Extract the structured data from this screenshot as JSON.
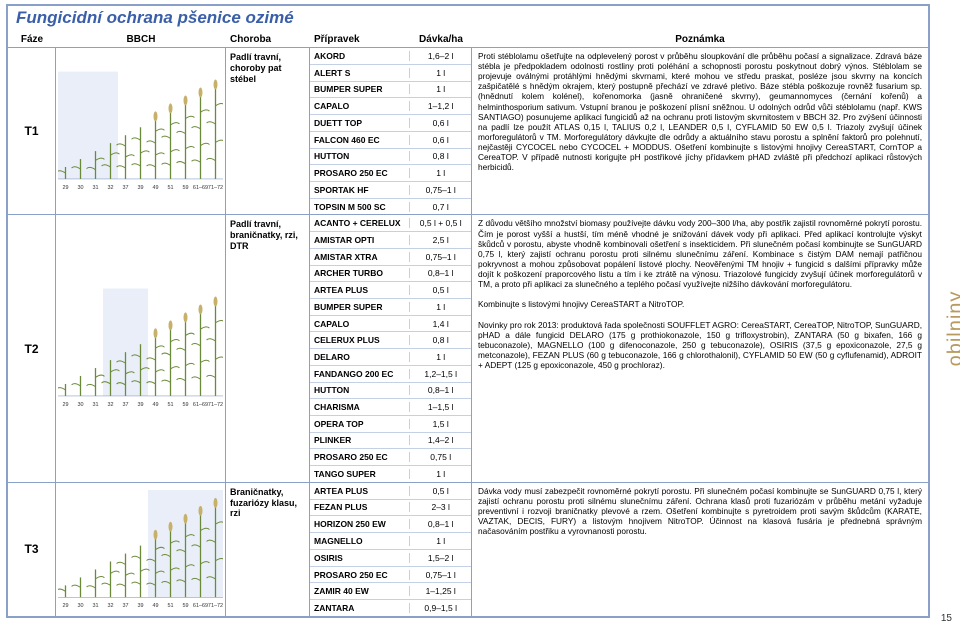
{
  "page": {
    "title": "Fungicidní ochrana pšenice ozimé",
    "side_label": "obilniny",
    "page_number": "15"
  },
  "header": {
    "faze": "Fáze",
    "bbch": "BBCH",
    "choroba": "Choroba",
    "pripravek": "Přípravek",
    "davka": "Dávka/ha",
    "poznamka": "Poznámka"
  },
  "bbch_ticks": [
    "29",
    "30",
    "31",
    "32",
    "37",
    "39",
    "49",
    "51",
    "59",
    "61–69",
    "71–72"
  ],
  "rows": [
    {
      "faze": "T1",
      "choroba": "Padlí travní, choroby pat stébel",
      "hl_start": 0,
      "hl_end": 4,
      "products": [
        {
          "name": "AKORD",
          "dose": "1,6–2 l"
        },
        {
          "name": "ALERT S",
          "dose": "1 l"
        },
        {
          "name": "BUMPER SUPER",
          "dose": "1 l"
        },
        {
          "name": "CAPALO",
          "dose": "1–1,2 l"
        },
        {
          "name": "DUETT TOP",
          "dose": "0,6 l"
        },
        {
          "name": "FALCON 460 EC",
          "dose": "0,6 l"
        },
        {
          "name": "HUTTON",
          "dose": "0,8 l"
        },
        {
          "name": "PROSARO 250 EC",
          "dose": "1 l"
        },
        {
          "name": "SPORTAK HF",
          "dose": "0,75–1 l"
        },
        {
          "name": "TOPSIN M 500 SC",
          "dose": "0,7 l"
        }
      ],
      "note": "Proti stéblolamu ošetřujte na odplevelený porost v průběhu sloupkování dle průběhu počasí a signalizace. Zdravá báze stébla je předpokladem odolnosti rostliny proti poléhání a schopnosti porostu poskytnout dobrý výnos. Stéblolam se projevuje oválnými protáhlými hnědými skvrnami, které mohou ve středu praskat, posléze jsou skvrny na koncích zašpičatělé s hnědým okrajem, který postupně přechází ve zdravé pletivo. Báze stébla poškozuje rovněž fusarium sp. (hnědnutí kolem kolénel), kořenomorka (jasně ohraničené skvrny), geumannomyces (černání kořenů) a helminthosporium sativum. Vstupní branou je poškození plísní sněžnou. U odolných odrůd vůči stéblolamu (např. KWS SANTIAGO) posunujeme aplikaci fungicidů až na ochranu proti listovým skvrnitostem v BBCH 32. Pro zvýšení účinnosti na padlí lze použít ATLAS 0,15 l, TALIUS 0,2 l, LEANDER 0,5 l, CYFLAMID 50 EW 0,5 l. Triazoly zvyšují účinek morforegulátorů v TM. Morforegulátory dávkujte dle odrůdy a aktuálního stavu porostu a splnění faktorů pro polehnutí, nejčastěji CYCOCEL nebo CYCOCEL + MODDUS. Ošetření kombinujte s listovými hnojivy CereaSTART, CornTOP a CereaTOP. V případě nutnosti korigujte pH postřikové jíchy přídavkem pHAD zvláště při předchozí aplikaci růstových herbicidů."
    },
    {
      "faze": "T2",
      "choroba": "Padlí travní, braničnatky, rzi, DTR",
      "hl_start": 3,
      "hl_end": 6,
      "products": [
        {
          "name": "ACANTO + CERELUX",
          "dose": "0,5 l + 0,5 l"
        },
        {
          "name": "AMISTAR OPTI",
          "dose": "2,5 l"
        },
        {
          "name": "AMISTAR XTRA",
          "dose": "0,75–1 l"
        },
        {
          "name": "ARCHER TURBO",
          "dose": "0,8–1 l"
        },
        {
          "name": "ARTEA PLUS",
          "dose": "0,5 l"
        },
        {
          "name": "BUMPER SUPER",
          "dose": "1 l"
        },
        {
          "name": "CAPALO",
          "dose": "1,4 l"
        },
        {
          "name": "CELERUX PLUS",
          "dose": "0,8 l"
        },
        {
          "name": "DELARO",
          "dose": "1 l"
        },
        {
          "name": "FANDANGO 200 EC",
          "dose": "1,2–1,5 l"
        },
        {
          "name": "HUTTON",
          "dose": "0,8–1 l"
        },
        {
          "name": "CHARISMA",
          "dose": "1–1,5 l"
        },
        {
          "name": "OPERA TOP",
          "dose": "1,5 l"
        },
        {
          "name": "PLINKER",
          "dose": "1,4–2 l"
        },
        {
          "name": "PROSARO 250 EC",
          "dose": "0,75 l"
        },
        {
          "name": "TANGO SUPER",
          "dose": "1 l"
        }
      ],
      "note": "Z důvodu většího množství biomasy používejte dávku vody 200–300 l/ha, aby postřik zajistil rovnoměrné pokrytí porostu. Čím je porost vyšší a hustší, tím méně vhodné je snižování dávek vody při aplikaci. Před aplikací kontrolujte výskyt škůdců v porostu, abyste vhodně kombinovali ošetření s insekticidem. Při slunečném počasí kombinujte se SunGUARD 0,75 l, který zajistí ochranu porostu proti silnému slunečnímu záření. Kombinace s čistým DAM nemají patřičnou pokryvnost a mohou způsobovat popálení listové plochy. Neověřenými TM hnojiv + fungicid s dalšími přípravky může dojít k poškození praporcového listu a tím i ke ztrátě na výnosu. Triazolové fungicidy zvyšují účinek morforegulátorů v TM, a proto při aplikaci za slunečného a teplého počasí využívejte nižšího dávkování morforegulátoru.\n\nKombinujte s listovými hnojivy CereaSTART a NitroTOP.\n\nNovinky pro rok 2013: produktová řada společnosti SOUFFLET AGRO: CereaSTART, CereaTOP, NitroTOP, SunGUARD, pHAD a dále fungicid DELARO (175 g prothiokonazole, 150 g trifloxystrobin), ZANTARA (50 g bixafen, 166 g tebuconazole), MAGNELLO (100 g difenoconazole, 250 g tebuconazole), OSIRIS (37,5 g epoxiconazole, 27,5 g metconazole), FEZAN PLUS (60 g tebuconazole, 166 g chlorothalonil), CYFLAMID 50 EW (50 g cyflufenamid), ADROIT + ADEPT (125 g epoxiconazole, 450 g prochloraz)."
    },
    {
      "faze": "T3",
      "choroba": "Braničnatky, fuzariózy klasu, rzi",
      "hl_start": 6,
      "hl_end": 11,
      "products": [
        {
          "name": "ARTEA PLUS",
          "dose": "0,5 l"
        },
        {
          "name": "FEZAN PLUS",
          "dose": "2–3 l"
        },
        {
          "name": "HORIZON 250 EW",
          "dose": "0,8–1 l"
        },
        {
          "name": "MAGNELLO",
          "dose": "1 l"
        },
        {
          "name": "OSIRIS",
          "dose": "1,5–2 l"
        },
        {
          "name": "PROSARO 250 EC",
          "dose": "0,75–1 l"
        },
        {
          "name": "ZAMIR 40 EW",
          "dose": "1–1,25 l"
        },
        {
          "name": "ZANTARA",
          "dose": "0,9–1,5 l"
        }
      ],
      "note": "Dávka vody musí zabezpečit rovnoměrné pokrytí porostu. Při slunečném počasí kombinujte se SunGUARD 0,75 l, který zajistí ochranu porostu proti silnému slunečnímu záření. Ochrana klasů proti fuzariózám v průběhu metání vyžaduje preventivní i rozvoji braničnatky plevové a rzem. Ošetření kombinujte s pyretroidem proti savým škůdcům (KARATE, VAZTAK, DECIS, FURY) a listovým hnojivem NitroTOP. Účinnost na klasová fusária je přednebná správným načasováním postřiku a vyrovnanosti porostu."
    }
  ],
  "colors": {
    "border": "#8aa0c8",
    "title": "#3a5fa8",
    "highlight": "#e9eef8",
    "wheat": "#6a8a3a",
    "tick": "#333333"
  }
}
